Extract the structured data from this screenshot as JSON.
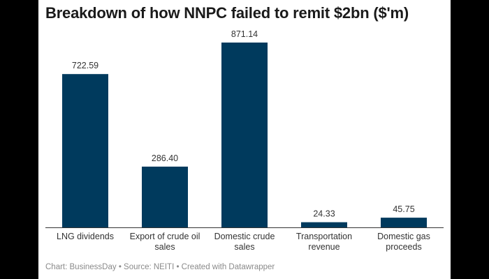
{
  "chart_data": {
    "type": "bar",
    "title": "Breakdown of how NNPC failed to remit $2bn  ($'m)",
    "categories": [
      [
        "LNG dividends"
      ],
      [
        "Export of crude oil",
        "sales"
      ],
      [
        "Domestic crude",
        "sales"
      ],
      [
        "Transportation",
        "revenue"
      ],
      [
        "Domestic gas",
        "proceeds"
      ]
    ],
    "values": [
      722.59,
      286.4,
      871.14,
      24.33,
      45.75
    ],
    "value_labels": [
      "722.59",
      "286.40",
      "871.14",
      "24.33",
      "45.75"
    ],
    "xlabel": "",
    "ylabel": "",
    "ylim": [
      0,
      871.14
    ],
    "grid": false,
    "bar_color": "#003a5d",
    "footer": "Chart: BusinessDay • Source: NEITI • Created with Datawrapper"
  }
}
